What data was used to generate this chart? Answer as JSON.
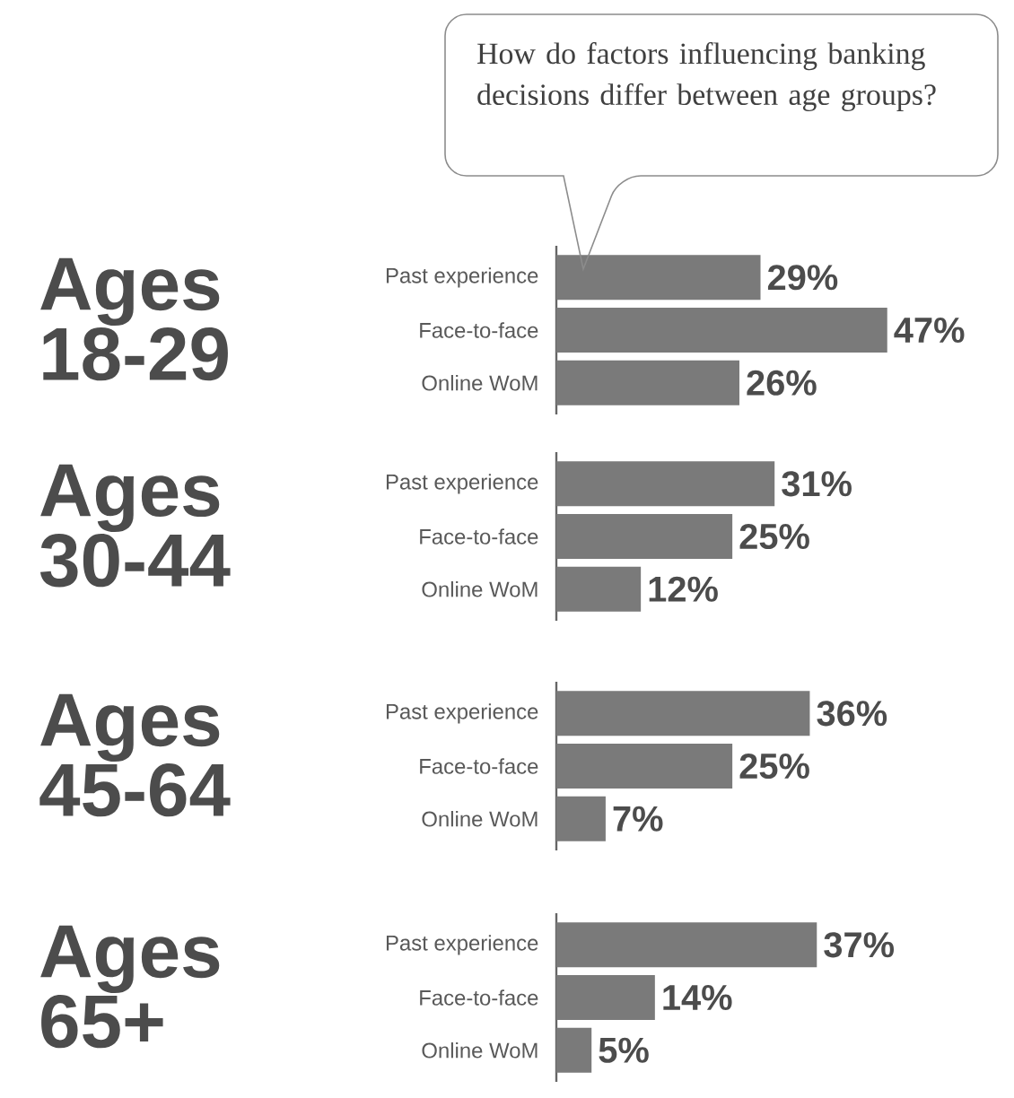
{
  "chart_data": [
    {
      "type": "bar",
      "orientation": "horizontal",
      "title": "Ages 18-29",
      "annotations": [
        "How do factors influencing banking decisions differ between age groups?"
      ],
      "categories": [
        "Past experience",
        "Face-to-face",
        "Online WoM"
      ],
      "values": [
        29,
        47,
        26
      ],
      "value_labels": [
        "29%",
        "47%",
        "26%"
      ],
      "color": "#7a7a7a",
      "tick_labels": "y"
    },
    {
      "type": "bar",
      "orientation": "horizontal",
      "title": "Ages 30-44",
      "categories": [
        "Past experience",
        "Face-to-face",
        "Online WoM"
      ],
      "values": [
        31,
        25,
        12
      ],
      "value_labels": [
        "31%",
        "25%",
        "12%"
      ],
      "color": "#7a7a7a",
      "tick_labels": "y"
    },
    {
      "type": "bar",
      "orientation": "horizontal",
      "title": "Ages 45-64",
      "categories": [
        "Past experience",
        "Face-to-face",
        "Online WoM"
      ],
      "values": [
        36,
        25,
        7
      ],
      "value_labels": [
        "36%",
        "25%",
        "7%"
      ],
      "color": "#7a7a7a",
      "tick_labels": "y"
    },
    {
      "type": "bar",
      "orientation": "horizontal",
      "title": "Ages 65+",
      "categories": [
        "Past experience",
        "Face-to-face",
        "Online WoM"
      ],
      "values": [
        37,
        14,
        5
      ],
      "value_labels": [
        "37%",
        "14%",
        "5%"
      ],
      "color": "#7a7a7a",
      "tick_labels": "y"
    }
  ]
}
